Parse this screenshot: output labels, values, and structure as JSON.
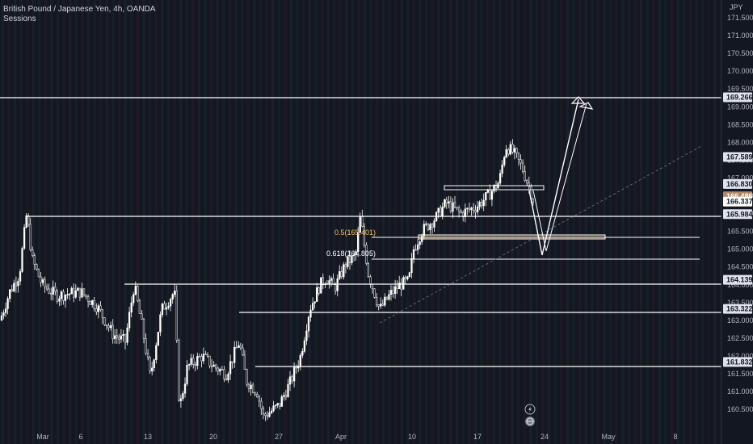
{
  "header": {
    "symbol_line": "British Pound / Japanese Yen, 4h, OANDA",
    "indicator": "Sessions"
  },
  "axis": {
    "currency": "JPY",
    "y_ticks": [
      "171.500",
      "171.000",
      "170.500",
      "170.000",
      "169.500",
      "169.000",
      "168.500",
      "168.000",
      "167.500",
      "167.000",
      "166.500",
      "166.000",
      "165.500",
      "165.000",
      "164.500",
      "164.000",
      "163.500",
      "163.000",
      "162.500",
      "162.000",
      "161.500",
      "161.000",
      "160.500"
    ],
    "x_ticks": [
      "Mar",
      "6",
      "13",
      "20",
      "27",
      "Apr",
      "10",
      "17",
      "24",
      "May",
      "8"
    ]
  },
  "price_tags": [
    {
      "label": "169.266",
      "value": 169.266,
      "style": "light"
    },
    {
      "label": "167.589",
      "value": 167.589,
      "style": "light"
    },
    {
      "label": "166.830",
      "value": 166.83,
      "style": "light"
    },
    {
      "label": "166.486",
      "value": 166.486,
      "style": "brown"
    },
    {
      "label": "166.337",
      "value": 166.337,
      "style": "white"
    },
    {
      "label": "165.984",
      "value": 165.984,
      "style": "light"
    },
    {
      "label": "164.139",
      "value": 164.139,
      "style": "light"
    },
    {
      "label": "163.322",
      "value": 163.322,
      "style": "light"
    },
    {
      "label": "161.832",
      "value": 161.832,
      "style": "light"
    }
  ],
  "fib_labels": {
    "fib_05": "0.5(165.401)",
    "fib_0618": "0.618(164.805)"
  },
  "icons": [
    "lightning-icon",
    "earth-icon"
  ],
  "colors": {
    "background": "#131722",
    "bull": "#ffffff",
    "bear": "#1c1f2a",
    "lines": "#ffffff",
    "fib_text": "#f5c56b"
  }
}
